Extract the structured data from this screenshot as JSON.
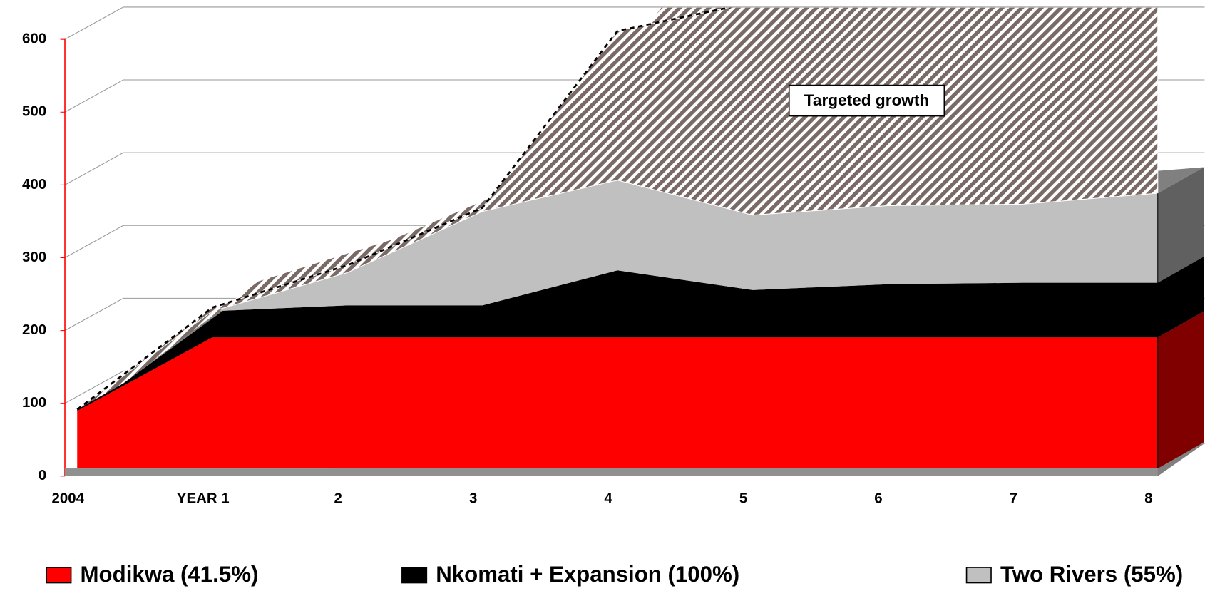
{
  "chart_data": {
    "type": "stacked_area_3d",
    "categories": [
      "2004",
      "YEAR 1",
      "2",
      "3",
      "4",
      "5",
      "6",
      "7",
      "8"
    ],
    "series": [
      {
        "name": "Modikwa (41.5%)",
        "color": "#ff0000",
        "side_color": "#800000",
        "values": [
          79,
          180,
          180,
          180,
          180,
          180,
          180,
          180,
          180
        ]
      },
      {
        "name": "Nkomati + Expansion (100%)",
        "color": "#000000",
        "side_color": "#000000",
        "values": [
          2,
          36,
          44,
          44,
          92,
          65,
          73,
          75,
          75
        ]
      },
      {
        "name": "Two Rivers (55%)",
        "color": "#c0c0c0",
        "side_color": "#606060",
        "values": [
          0,
          0,
          45,
          129,
          124,
          103,
          108,
          108,
          123
        ]
      },
      {
        "name": "Targeted growth",
        "color": "#7a6a66",
        "pattern": "hatch",
        "values": [
          0,
          5,
          10,
          5,
          205,
          292,
          279,
          277,
          262
        ]
      }
    ],
    "ylim": [
      0,
      640
    ],
    "yticks": [
      0,
      100,
      200,
      300,
      400,
      500,
      600
    ],
    "axis_color": "#ff0000",
    "grid": true,
    "legend": "bottom"
  }
}
